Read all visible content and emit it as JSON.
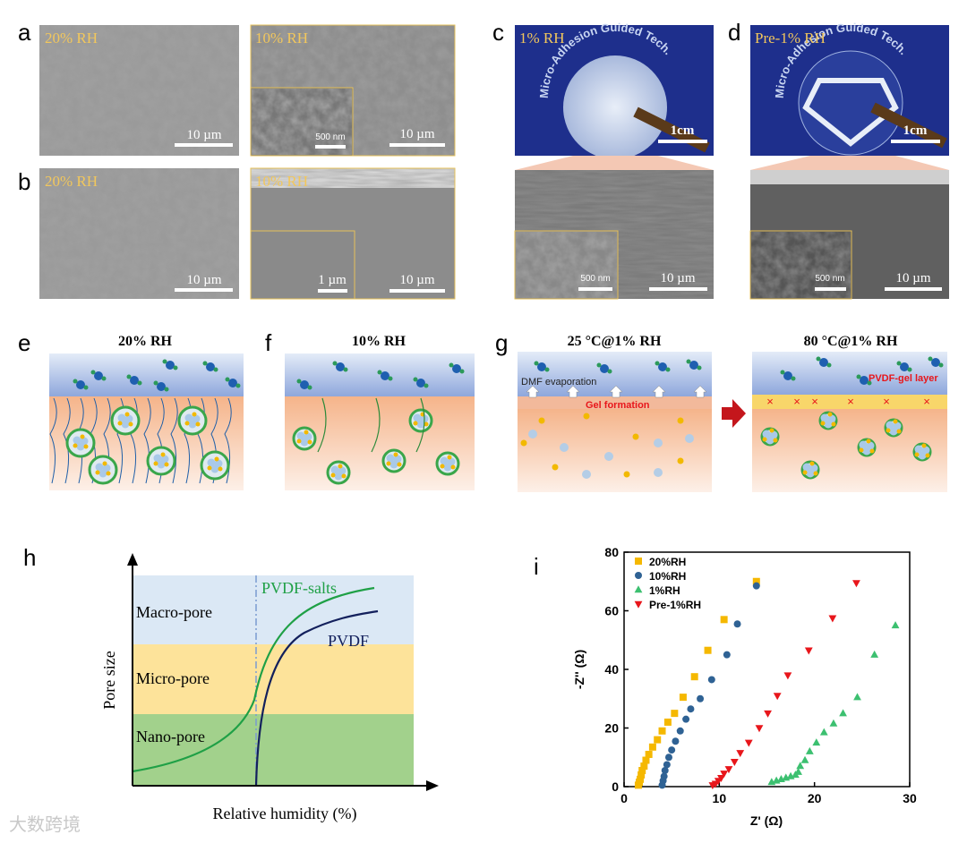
{
  "panels": {
    "a": {
      "label": "a",
      "left": {
        "caption": "20% RH",
        "scale_bar": "10 µm"
      },
      "right": {
        "caption": "10% RH",
        "scale_bar": "10 µm",
        "inset_scale_bar": "500 nm"
      }
    },
    "b": {
      "label": "b",
      "left": {
        "caption": "20% RH",
        "scale_bar": "10 µm"
      },
      "right": {
        "caption": "10% RH",
        "scale_bar": "10 µm",
        "inset_scale_bar": "1 µm"
      }
    },
    "c": {
      "label": "c",
      "photo_caption": "1% RH",
      "photo_text": "Micro-Adhesion Guided Tech.",
      "photo_scale_bar": "1cm",
      "sem_scale_bar": "10 µm",
      "inset_scale_bar": "500 nm"
    },
    "d": {
      "label": "d",
      "photo_caption": "Pre-1% RH",
      "photo_text": "Micro-Adhesion Guided Tech.",
      "photo_scale_bar": "1cm",
      "sem_scale_bar": "10 µm",
      "inset_scale_bar": "500 nm"
    },
    "e": {
      "label": "e",
      "title": "20% RH"
    },
    "f": {
      "label": "f",
      "title": "10% RH"
    },
    "g": {
      "label": "g",
      "left_title": "25 °C@1% RH",
      "right_title": "80 °C@1% RH",
      "dmf": "DMF evaporation",
      "gel": "Gel formation",
      "layer": "PVDF-gel layer"
    },
    "h": {
      "label": "h",
      "bands": [
        "Macro-pore",
        "Micro-pore",
        "Nano-pore"
      ],
      "curves": [
        "PVDF-salts",
        "PVDF"
      ],
      "y_label": "Pore size",
      "x_label": "Relative humidity (%)"
    },
    "i": {
      "label": "i"
    }
  },
  "watermark": "大数跨境",
  "chart_data": {
    "type": "scatter",
    "x_label": "Z' (Ω)",
    "y_label": "-Z'' (Ω)",
    "xlim": [
      0,
      30
    ],
    "xticks": [
      0,
      10,
      20,
      30
    ],
    "ylim": [
      0,
      80
    ],
    "yticks": [
      0,
      20,
      40,
      60,
      80
    ],
    "legend": "upper left",
    "series": [
      {
        "name": "20%RH",
        "color": "#f5b800",
        "marker": "square",
        "x": [
          1.5,
          1.6,
          1.7,
          1.8,
          1.9,
          2.1,
          2.3,
          2.6,
          3.0,
          3.5,
          4.0,
          4.6,
          5.3,
          6.2,
          7.4,
          8.8,
          10.5,
          13.9
        ],
        "values": [
          0.5,
          1.5,
          2.5,
          4,
          5.5,
          7,
          9,
          11,
          13.5,
          16,
          19,
          22,
          25,
          30.5,
          37.5,
          46.5,
          57,
          70
        ]
      },
      {
        "name": "10%RH",
        "color": "#2f6294",
        "marker": "circle",
        "x": [
          4.0,
          4.1,
          4.2,
          4.3,
          4.5,
          4.7,
          5.0,
          5.4,
          5.9,
          6.5,
          7.0,
          8.0,
          9.2,
          10.8,
          11.9,
          13.9
        ],
        "values": [
          0.5,
          2,
          3.5,
          5.5,
          7.5,
          10,
          12.5,
          15.5,
          19,
          23,
          26.5,
          30,
          36.5,
          45,
          55.5,
          68.5
        ]
      },
      {
        "name": "1%RH",
        "color": "#3cc070",
        "marker": "triangle-up",
        "x": [
          15.5,
          16.0,
          16.5,
          17.0,
          17.5,
          18.0,
          18.3,
          18.5,
          19.0,
          19.5,
          20.2,
          21.0,
          22.0,
          23.0,
          24.5,
          26.3,
          28.5
        ],
        "values": [
          1.5,
          2,
          2.5,
          3,
          3.5,
          4,
          5,
          7,
          9,
          12,
          15,
          18.5,
          21.5,
          25,
          30.5,
          45,
          55
        ]
      },
      {
        "name": "Pre-1%RH",
        "color": "#e8161b",
        "marker": "triangle-down",
        "x": [
          9.3,
          9.6,
          9.9,
          10.2,
          10.5,
          11.0,
          11.6,
          12.2,
          13.1,
          14.2,
          15.1,
          16.1,
          17.2,
          19.4,
          21.9,
          24.4
        ],
        "values": [
          0.5,
          1,
          2,
          3,
          4.5,
          6,
          8.5,
          11.5,
          15,
          20,
          25,
          31,
          38,
          46.5,
          57.5,
          69.5
        ]
      }
    ]
  }
}
